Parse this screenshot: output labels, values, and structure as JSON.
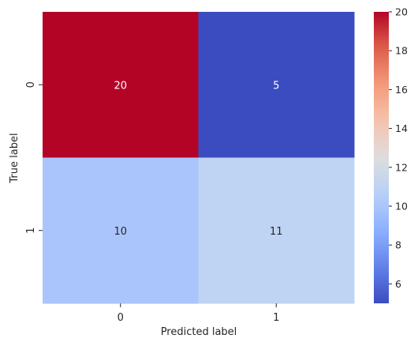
{
  "chart_data": {
    "type": "heatmap",
    "title": "",
    "xlabel": "Predicted label",
    "ylabel": "True label",
    "x_categories": [
      "0",
      "1"
    ],
    "y_categories": [
      "0",
      "1"
    ],
    "values": [
      [
        20,
        5
      ],
      [
        10,
        11
      ]
    ],
    "colormap": "coolwarm",
    "colorbar": {
      "range": [
        5,
        20
      ],
      "ticks": [
        "6",
        "8",
        "10",
        "12",
        "14",
        "16",
        "18",
        "20"
      ],
      "placement": "right"
    },
    "grid": false
  }
}
